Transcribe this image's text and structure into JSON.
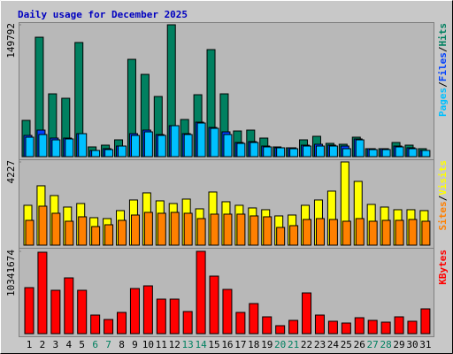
{
  "legend_separator": "/",
  "chart_data": [
    {
      "type": "bar",
      "title": "Daily usage for December 2025",
      "ylim": [
        0,
        149792
      ],
      "yticks": [
        149792
      ],
      "series": [
        {
          "name": "Hits",
          "color": "#008060",
          "values": [
            41205,
            135675,
            71355,
            66330,
            129645,
            11055,
            13065,
            19095,
            110550,
            93465,
            68340,
            149792,
            42210,
            70350,
            121605,
            71355,
            29145,
            30150,
            21105,
            11055,
            10050,
            19095,
            23115,
            15075,
            14070,
            22110,
            9045,
            9045,
            16080,
            13065,
            9045
          ]
        },
        {
          "name": "Files",
          "color": "#0040ff",
          "values": [
            24120,
            30150,
            21105,
            21105,
            26130,
            7035,
            9045,
            12060,
            26130,
            30150,
            25125,
            35175,
            26130,
            39195,
            33165,
            28140,
            16080,
            17085,
            12060,
            10050,
            10050,
            13065,
            14070,
            13065,
            12060,
            20100,
            9045,
            9045,
            12060,
            10050,
            7035
          ]
        },
        {
          "name": "Pages",
          "color": "#00c0ff",
          "values": [
            22110,
            25125,
            19095,
            20100,
            26130,
            7035,
            8040,
            12060,
            24120,
            28140,
            24120,
            35175,
            25125,
            38190,
            32160,
            25125,
            15075,
            16080,
            11055,
            10050,
            9045,
            12060,
            12060,
            12060,
            9045,
            19095,
            8040,
            8040,
            11055,
            9045,
            7035
          ]
        }
      ]
    },
    {
      "type": "bar",
      "ylim": [
        0,
        4227
      ],
      "yticks": [
        4227
      ],
      "series": [
        {
          "name": "Visits",
          "color": "#ffff00",
          "values": [
            2025,
            3015,
            2520,
            1935,
            2115,
            1395,
            1350,
            1755,
            2295,
            2655,
            2250,
            2115,
            2340,
            1845,
            2700,
            2205,
            2025,
            1890,
            1800,
            1485,
            1530,
            2025,
            2295,
            2745,
            4227,
            3240,
            2070,
            1935,
            1800,
            1800,
            1755
          ]
        },
        {
          "name": "Sites",
          "color": "#ff8000",
          "values": [
            1260,
            1980,
            1620,
            1215,
            1440,
            945,
            1035,
            1260,
            1530,
            1665,
            1620,
            1665,
            1620,
            1350,
            1575,
            1575,
            1575,
            1485,
            1440,
            900,
            990,
            1305,
            1350,
            1305,
            1215,
            1350,
            1215,
            1260,
            1260,
            1305,
            1215
          ]
        }
      ]
    },
    {
      "type": "bar",
      "ylim": [
        0,
        10341674
      ],
      "yticks": [
        10341674
      ],
      "categories": [
        "1",
        "2",
        "3",
        "4",
        "5",
        "6",
        "7",
        "8",
        "9",
        "10",
        "11",
        "12",
        "13",
        "14",
        "15",
        "16",
        "17",
        "18",
        "19",
        "20",
        "21",
        "22",
        "23",
        "24",
        "25",
        "26",
        "27",
        "28",
        "29",
        "30",
        "31"
      ],
      "category_colors": [
        "#000000",
        "#000000",
        "#000000",
        "#000000",
        "#000000",
        "#008060",
        "#008060",
        "#000000",
        "#000000",
        "#000000",
        "#000000",
        "#000000",
        "#008060",
        "#008060",
        "#000000",
        "#000000",
        "#000000",
        "#000000",
        "#000000",
        "#008060",
        "#008060",
        "#000000",
        "#000000",
        "#000000",
        "#000000",
        "#000000",
        "#008060",
        "#008060",
        "#000000",
        "#000000",
        "#000000"
      ],
      "series": [
        {
          "name": "KBytes",
          "color": "#ff0000",
          "values": [
            5782400,
            10230400,
            5448800,
            7005600,
            5448800,
            2335200,
            1779200,
            2668800,
            5671200,
            6004800,
            4336800,
            4336800,
            2780000,
            10341674,
            7228000,
            5560000,
            2668800,
            3780800,
            2112800,
            1000800,
            1668000,
            5115200,
            2335200,
            1556800,
            1334400,
            2001600,
            1668000,
            1445600,
            2112800,
            1556800,
            3113600
          ]
        }
      ]
    }
  ]
}
